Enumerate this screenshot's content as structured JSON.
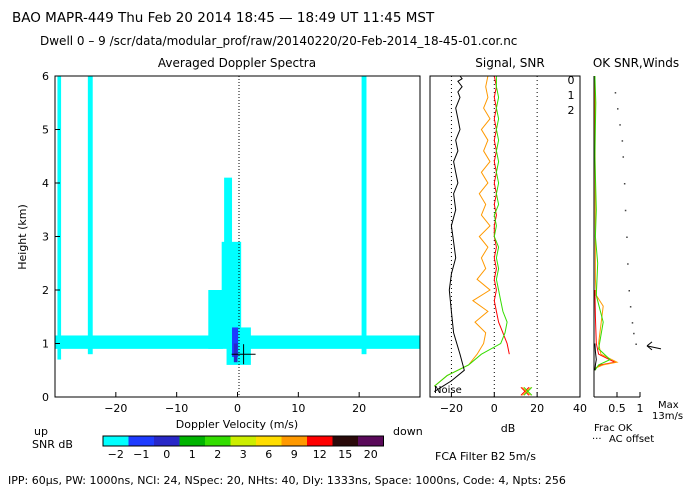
{
  "header": {
    "line1": "BAO   MAPR-449   Thu Feb 20 2014 18:45 — 18:49 UT 11:45 MST",
    "line2": "Dwell   0 – 9   /scr/data/modular_prof/raw/20140220/20-Feb-2014_18-45-01.cor.nc"
  },
  "footer": {
    "params": "IPP:  60μs,  PW: 1000ns,  NCI:  24,  NSpec: 20, NHts: 40,  Dly: 1333ns,  Space: 1000ns,  Code: 4,  Npts: 256",
    "fca": "FCA Filter B2   5m/s"
  },
  "colors": {
    "cyan": "#00ffff",
    "blue": "#1e3cff",
    "navy": "#0000a0",
    "black": "#000000",
    "red": "#ff0000",
    "orange": "#ff9900",
    "green": "#33dd00",
    "dot": "#444444"
  },
  "chart_data": [
    {
      "type": "heatmap",
      "title": "Averaged Doppler Spectra",
      "xlabel": "Doppler Velocity (m/s)",
      "ylabel": "Height (km)",
      "xlim": [
        -30,
        30
      ],
      "ylim": [
        0,
        6
      ],
      "xticks": [
        -20,
        -10,
        0,
        10,
        20
      ],
      "yticks": [
        0,
        1,
        2,
        3,
        4,
        5,
        6
      ],
      "x_left_label": "up",
      "x_right_label": "down",
      "zero_line": true,
      "colorbar": {
        "label": "SNR dB",
        "ticks": [
          "-2",
          "-1",
          "0",
          "1",
          "2",
          "3",
          "6",
          "9",
          "12",
          "15",
          "20"
        ],
        "colors": [
          "#00ffff",
          "#1e3cff",
          "#2828c8",
          "#00b400",
          "#33dd00",
          "#ccee00",
          "#ffdd00",
          "#ff9900",
          "#ff0000",
          "#2a0a0a",
          "#5a0a5a"
        ]
      },
      "cells": [
        {
          "v0": -29.6,
          "v1": -29.0,
          "h0": 0.7,
          "h1": 6.0,
          "snr": -2
        },
        {
          "v0": -24.6,
          "v1": -23.8,
          "h0": 0.8,
          "h1": 6.0,
          "snr": -2
        },
        {
          "v0": 20.4,
          "v1": 21.2,
          "h0": 0.8,
          "h1": 6.0,
          "snr": -2
        },
        {
          "v0": -2.2,
          "v1": -0.9,
          "h0": 1.7,
          "h1": 4.1,
          "snr": -2
        },
        {
          "v0": -2.6,
          "v1": 0.6,
          "h0": 1.0,
          "h1": 2.9,
          "snr": -2
        },
        {
          "v0": -4.8,
          "v1": -2.4,
          "h0": 0.9,
          "h1": 2.0,
          "snr": -2
        },
        {
          "v0": -1.8,
          "v1": 2.2,
          "h0": 0.6,
          "h1": 1.3,
          "snr": -2
        },
        {
          "v0": -30.0,
          "v1": 30.0,
          "h0": 0.9,
          "h1": 1.15,
          "snr": -2
        },
        {
          "v0": -0.9,
          "v1": 0.1,
          "h0": 0.75,
          "h1": 1.3,
          "snr": -1
        },
        {
          "v0": -0.6,
          "v1": 0.0,
          "h0": 0.65,
          "h1": 1.0,
          "snr": 0
        }
      ],
      "cursor": {
        "v": 1.0,
        "h": 0.8
      }
    },
    {
      "type": "line",
      "title": "Signal, SNR",
      "xlabel": "dB",
      "xlim": [
        -30,
        40
      ],
      "ylim": [
        0,
        6
      ],
      "xticks": [
        -20,
        0,
        20,
        40
      ],
      "noise_label": "Noise",
      "vlines_dotted": [
        -20,
        0,
        20
      ],
      "series": [
        {
          "name": "0",
          "color": "#ff0000",
          "x": [
            7,
            6,
            4,
            2,
            1,
            0,
            1,
            0,
            1,
            0,
            1,
            0,
            0,
            1,
            0,
            1,
            0,
            1,
            0,
            1,
            0,
            1,
            0,
            1,
            0,
            1,
            0,
            1,
            0,
            1
          ],
          "y": [
            0.8,
            1.0,
            1.2,
            1.4,
            1.6,
            1.8,
            2.0,
            2.2,
            2.4,
            2.6,
            2.8,
            3.0,
            3.2,
            3.4,
            3.6,
            3.8,
            4.0,
            4.2,
            4.4,
            4.6,
            4.8,
            5.0,
            5.2,
            5.4,
            5.6,
            5.8,
            6.0,
            6.0,
            6.0,
            6.0
          ]
        },
        {
          "name": "1",
          "color": "#ff9900",
          "x": [
            -28,
            -22,
            -12,
            -8,
            -5,
            -4,
            -9,
            -3,
            -10,
            -2,
            -8,
            -4,
            -6,
            -3,
            -7,
            -2,
            -6,
            -4,
            -7,
            -3,
            -6,
            -2,
            -5,
            -3,
            -6,
            -2,
            -5,
            -3,
            -4,
            -3
          ],
          "y": [
            0.2,
            0.4,
            0.6,
            0.8,
            1.0,
            1.2,
            1.4,
            1.6,
            1.8,
            2.0,
            2.2,
            2.4,
            2.6,
            2.8,
            3.0,
            3.2,
            3.4,
            3.6,
            3.8,
            4.0,
            4.2,
            4.4,
            4.6,
            4.8,
            5.0,
            5.2,
            5.4,
            5.6,
            5.8,
            6.0
          ]
        },
        {
          "name": "2",
          "color": "#33dd00",
          "x": [
            -28,
            -22,
            -12,
            -6,
            3,
            5,
            6,
            4,
            3,
            2,
            1,
            2,
            1,
            2,
            0,
            1,
            0,
            2,
            1,
            2,
            1,
            2,
            1,
            2,
            1,
            2,
            1,
            2,
            1,
            1
          ],
          "y": [
            0.2,
            0.4,
            0.6,
            0.8,
            1.0,
            1.2,
            1.4,
            1.6,
            1.8,
            2.0,
            2.2,
            2.4,
            2.6,
            2.8,
            3.0,
            3.2,
            3.4,
            3.6,
            3.8,
            4.0,
            4.2,
            4.4,
            4.6,
            4.8,
            5.0,
            5.2,
            5.4,
            5.6,
            5.8,
            6.0
          ]
        },
        {
          "name": "Noise",
          "color": "#000000",
          "x": [
            -28,
            -20,
            -14,
            -16,
            -19,
            -20,
            -21,
            -20,
            -18,
            -19,
            -20,
            -18,
            -19,
            -17,
            -18,
            -19,
            -17,
            -18,
            -16,
            -17,
            -18,
            -16,
            -17,
            -15,
            -16,
            -17,
            -15,
            -16,
            -15,
            -15
          ],
          "y": [
            0.1,
            0.3,
            0.5,
            0.8,
            1.2,
            1.6,
            2.0,
            2.3,
            2.6,
            2.9,
            3.2,
            3.5,
            3.8,
            4.0,
            4.2,
            4.4,
            4.6,
            4.8,
            5.0,
            5.2,
            5.4,
            5.6,
            5.7,
            5.8,
            5.85,
            5.9,
            5.95,
            6.0,
            6.0,
            6.0
          ]
        }
      ],
      "markers": [
        {
          "x": 15,
          "y": 0.05,
          "colors": [
            "#ff0000",
            "#ff9900",
            "#33dd00"
          ]
        }
      ]
    },
    {
      "type": "line",
      "title": "OK SNR,Winds",
      "xlabel": "Frac OK",
      "xlim": [
        0,
        1
      ],
      "ylim": [
        0,
        6
      ],
      "xticks": [
        0.5,
        1
      ],
      "xtick_labels": [
        "0.5",
        "1"
      ],
      "legend": [
        "0",
        "1",
        "2"
      ],
      "legend_colors": [
        "#ff0000",
        "#ff9900",
        "#33dd00"
      ],
      "ac_offset_label": "AC offset",
      "max_label": "Max",
      "max_value_label": "13m/s",
      "series": [
        {
          "name": "0",
          "color": "#ff0000",
          "x": [
            0.02,
            0.05,
            0.15,
            0.45,
            0.1,
            0.05,
            0.03,
            0.02
          ],
          "y": [
            0.5,
            0.55,
            0.6,
            0.65,
            0.8,
            1.0,
            1.5,
            2.0
          ]
        },
        {
          "name": "1",
          "color": "#ff9900",
          "x": [
            0.02,
            0.05,
            0.2,
            0.5,
            0.15,
            0.1,
            0.2,
            0.05,
            0.03,
            0.02
          ],
          "y": [
            0.5,
            0.55,
            0.6,
            0.65,
            0.8,
            1.0,
            1.7,
            1.9,
            2.2,
            6.0
          ]
        },
        {
          "name": "2",
          "color": "#33dd00",
          "x": [
            0.02,
            0.1,
            0.35,
            0.1,
            0.2,
            0.05,
            0.08,
            0.03,
            0.05,
            0.02,
            0.04,
            0.02
          ],
          "y": [
            0.5,
            0.6,
            0.7,
            0.9,
            1.4,
            1.9,
            2.5,
            3.0,
            3.5,
            4.5,
            5.5,
            6.0
          ]
        },
        {
          "name": "AC",
          "color": "#000000",
          "x": [
            0.02,
            0.03,
            0.05,
            0.03,
            0.02
          ],
          "y": [
            0.5,
            0.6,
            0.7,
            0.85,
            1.0
          ]
        }
      ],
      "ac_offset_points": [
        {
          "x": 0.45,
          "y": 5.7
        },
        {
          "x": 0.5,
          "y": 5.4
        },
        {
          "x": 0.55,
          "y": 5.1
        },
        {
          "x": 0.6,
          "y": 4.8
        },
        {
          "x": 0.62,
          "y": 4.5
        },
        {
          "x": 0.65,
          "y": 4.0
        },
        {
          "x": 0.67,
          "y": 3.5
        },
        {
          "x": 0.7,
          "y": 3.0
        },
        {
          "x": 0.72,
          "y": 2.5
        },
        {
          "x": 0.75,
          "y": 2.0
        },
        {
          "x": 0.78,
          "y": 1.7
        },
        {
          "x": 0.82,
          "y": 1.4
        },
        {
          "x": 0.85,
          "y": 1.2
        },
        {
          "x": 0.9,
          "y": 1.0
        }
      ],
      "wind_barbs": [
        {
          "y": 0.9,
          "dir_deg": 110,
          "speed": 13
        }
      ]
    }
  ]
}
